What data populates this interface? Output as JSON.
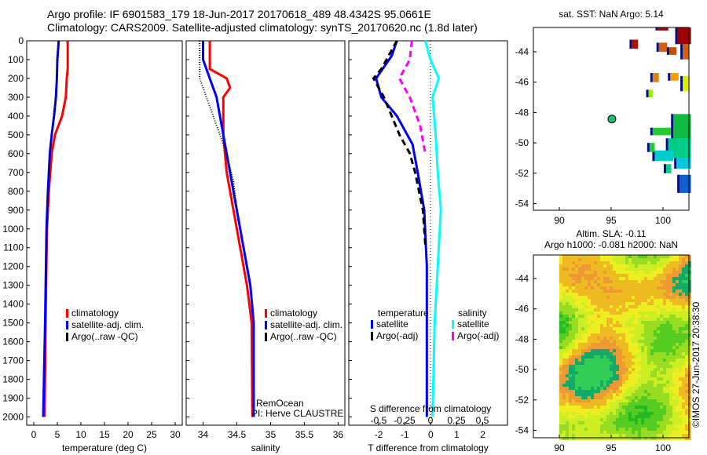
{
  "header": {
    "line1": "Argo profile: IF 6901583_179 18-Jun-2017 20170618_489 48.4342S 95.0661E",
    "line2": "Climatology: CARS2009. Satellite-adjusted climatology: synTS_20170620.nc (1.8d later)"
  },
  "colors": {
    "climatology": "#ff0000",
    "satellite": "#0000ff",
    "argo": "#000000",
    "sal_satellite": "#00ffff",
    "sal_argo": "#ff00ff"
  },
  "chart_data": [
    {
      "type": "line",
      "name": "temperature",
      "xlabel": "temperature (deg C)",
      "xlim": [
        -1.5,
        31.5
      ],
      "ylim": [
        2050,
        0
      ],
      "xticks": [
        "0",
        "5",
        "10",
        "15",
        "20",
        "25",
        "30"
      ],
      "yticks": [
        "0",
        "100",
        "200",
        "300",
        "400",
        "500",
        "600",
        "700",
        "800",
        "900",
        "1000",
        "1100",
        "1200",
        "1300",
        "1400",
        "1500",
        "1600",
        "1700",
        "1800",
        "1900",
        "2000"
      ],
      "legend": [
        "climatology",
        "satellite-adj. clim.",
        "Argo(..raw -QC)"
      ],
      "series": [
        {
          "name": "climatology",
          "depth": [
            0,
            150,
            200,
            300,
            400,
            500,
            600,
            800,
            1000,
            1500,
            2000
          ],
          "values": [
            7.2,
            7.2,
            7.0,
            6.8,
            6.0,
            4.5,
            3.8,
            3.2,
            2.8,
            2.5,
            2.3
          ]
        },
        {
          "name": "satellite-adj. clim.",
          "depth": [
            0,
            100,
            200,
            300,
            400,
            500,
            600,
            800,
            1000,
            1500,
            2000
          ],
          "values": [
            5.3,
            5.0,
            4.9,
            4.7,
            4.3,
            3.8,
            3.4,
            3.0,
            2.7,
            2.4,
            2.0
          ]
        },
        {
          "name": "Argo(..raw -QC)",
          "depth": [
            0,
            100,
            200,
            300,
            400,
            500,
            600,
            800,
            1000,
            1300
          ],
          "values": [
            5.2,
            5.0,
            4.9,
            4.7,
            4.3,
            3.8,
            3.4,
            3.0,
            2.7,
            2.5
          ]
        }
      ]
    },
    {
      "type": "line",
      "name": "salinity",
      "xlabel": "salinity",
      "xlim": [
        33.75,
        36.1
      ],
      "ylim": [
        2050,
        0
      ],
      "xticks": [
        "34",
        "34.5",
        "35",
        "35.5",
        "36"
      ],
      "legend": [
        "climatology",
        "satellite-adj. clim.",
        "Argo(..raw -QC)"
      ],
      "annotation": [
        "RemOcean",
        "PI: Herve CLAUSTRE"
      ],
      "series": [
        {
          "name": "climatology",
          "depth": [
            0,
            150,
            200,
            250,
            300,
            500,
            700,
            900,
            1100,
            1300,
            1500,
            2000
          ],
          "values": [
            34.1,
            34.1,
            34.35,
            34.4,
            34.3,
            34.3,
            34.35,
            34.45,
            34.55,
            34.65,
            34.72,
            34.73
          ]
        },
        {
          "name": "satellite-adj. clim.",
          "depth": [
            0,
            100,
            200,
            300,
            500,
            700,
            900,
            1100,
            1300,
            1500,
            2000
          ],
          "values": [
            34.0,
            34.0,
            34.1,
            34.2,
            34.3,
            34.4,
            34.5,
            34.6,
            34.7,
            34.75,
            34.75
          ]
        },
        {
          "name": "Argo(..raw -QC)",
          "depth": [
            0,
            200,
            300,
            450,
            600,
            750,
            900
          ],
          "values": [
            33.95,
            33.95,
            34.05,
            34.2,
            34.35,
            34.45,
            34.5
          ]
        }
      ]
    },
    {
      "type": "line",
      "name": "difference",
      "xlabel": "T difference from climatology",
      "xlabel2": "S difference from climatology",
      "xlim": [
        -3.15,
        2.95
      ],
      "ylim": [
        2050,
        0
      ],
      "xticks": [
        "-2",
        "-1",
        "0",
        "1",
        "2"
      ],
      "xticks2": [
        "-0.5",
        "-0.25",
        "0",
        "0.25",
        "0.5"
      ],
      "legend_t": {
        "title": "temperature",
        "items": [
          "satellite",
          "Argo(-adj)"
        ]
      },
      "legend_s": {
        "title": "salinity",
        "items": [
          "satellite",
          "Argo(-adj)"
        ]
      },
      "series": [
        {
          "name": "T satellite",
          "depth": [
            0,
            80,
            200,
            300,
            400,
            550,
            700,
            900,
            1200,
            2000
          ],
          "values": [
            -1.3,
            -1.5,
            -2.1,
            -1.9,
            -1.3,
            -0.7,
            -0.5,
            -0.25,
            -0.15,
            -0.15
          ]
        },
        {
          "name": "T Argo(-adj)",
          "depth": [
            0,
            150,
            200,
            300,
            400,
            500,
            600,
            700,
            900,
            1100
          ],
          "values": [
            -1.3,
            -1.9,
            -2.2,
            -1.8,
            -1.5,
            -1.2,
            -0.8,
            -0.6,
            -0.3,
            -0.2
          ]
        },
        {
          "name": "S satellite",
          "depth": [
            0,
            100,
            200,
            300,
            500,
            700,
            900,
            1100,
            1500,
            2000
          ],
          "values": [
            -0.05,
            0.0,
            0.08,
            0.02,
            0.05,
            0.07,
            0.1,
            0.08,
            0.04,
            0.02
          ]
        },
        {
          "name": "S Argo(-adj)",
          "depth": [
            0,
            100,
            200,
            300,
            450,
            600
          ],
          "values": [
            -0.18,
            -0.2,
            -0.3,
            -0.2,
            -0.1,
            -0.05
          ]
        }
      ]
    },
    {
      "type": "heatmap",
      "name": "sst-map",
      "title": "sat. SST: NaN Argo: 5.14",
      "xticks": [
        "90",
        "95",
        "100"
      ],
      "yticks": [
        "-44",
        "-46",
        "-48",
        "-50",
        "-52",
        "-54"
      ],
      "float_position": {
        "lon": 95.07,
        "lat": -48.43
      }
    },
    {
      "type": "heatmap",
      "name": "sla-map",
      "title1": "Altim. SLA: -0.11",
      "title2": "Argo h1000: -0.081 h2000: NaN",
      "xticks": [
        "90",
        "95",
        "100"
      ],
      "yticks": [
        "-44",
        "-46",
        "-48",
        "-50",
        "-52",
        "-54"
      ]
    }
  ],
  "credit": "©IMOS 27-Jun-2017 20:38:30"
}
